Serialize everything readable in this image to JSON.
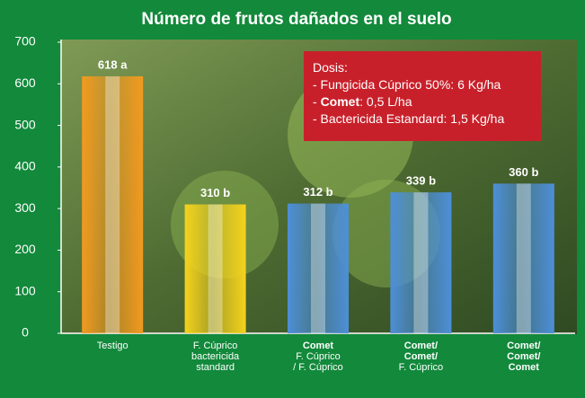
{
  "chart_data": {
    "type": "bar",
    "title": "Número de frutos dañados en el suelo",
    "categories": [
      [
        "Testigo"
      ],
      [
        "F. Cúprico",
        "bactericida",
        "standard"
      ],
      [
        "Comet",
        "F. Cúprico",
        "/ F. Cúprico"
      ],
      [
        "Comet/",
        "Comet/",
        "F. Cúprico"
      ],
      [
        "Comet/",
        "Comet/",
        "Comet"
      ]
    ],
    "values": [
      618,
      310,
      312,
      339,
      360
    ],
    "value_labels": [
      "618 a",
      "310 b",
      "312 b",
      "339 b",
      "360 b"
    ],
    "colors": [
      "#f29a1f",
      "#f5d21c",
      "#4d8fd8",
      "#4d8fd8",
      "#4d8fd8"
    ],
    "ylim": [
      0,
      700
    ],
    "yticks": [
      0,
      100,
      200,
      300,
      400,
      500,
      600,
      700
    ],
    "annotation": [
      [
        {
          "text": "Dosis:"
        }
      ],
      [
        {
          "text": "- Fungicida Cúprico 50%: 6 Kg/ha"
        }
      ],
      [
        {
          "text": "- "
        },
        {
          "text": "Comet",
          "bold": true
        },
        {
          "text": ": 0,5 L/ha"
        }
      ],
      [
        {
          "text": "- Bactericida Estandard: 1,5 Kg/ha"
        }
      ]
    ]
  }
}
